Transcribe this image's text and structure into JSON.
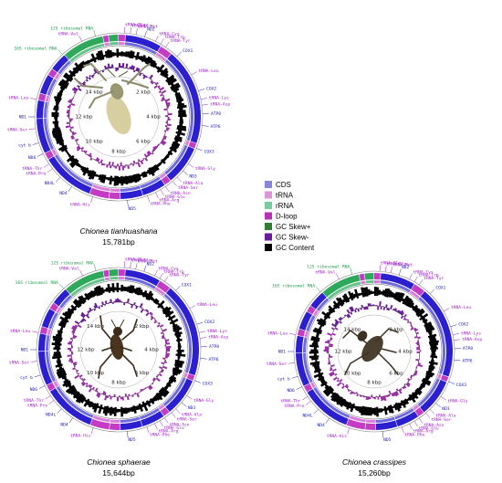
{
  "colors": {
    "cds": "#2b1fd0",
    "trna": "#c43cc4",
    "rrna": "#2ea85a",
    "dloop": "#7a2e96",
    "gc_skew_plus": "#2e7d32",
    "gc_skew_minus": "#6a1b9a",
    "gc_content": "#000000"
  },
  "legend": [
    {
      "label": "CDS",
      "color": "#8a86d8"
    },
    {
      "label": "tRNA",
      "color": "#d898d8"
    },
    {
      "label": "rRNA",
      "color": "#7ccaa0"
    },
    {
      "label": "D-loop",
      "color": "#b430b4"
    },
    {
      "label": "GC Skew+",
      "color": "#2e7d32"
    },
    {
      "label": "GC Skew-",
      "color": "#6a1b9a"
    },
    {
      "label": "GC Content",
      "color": "#000000"
    }
  ],
  "maps": [
    {
      "species": "Chionea tianhuashana",
      "length": "15,781bp",
      "mbp": [
        "14 kbp",
        "2 kbp",
        "4 kbp",
        "6 kbp",
        "8 kbp",
        "10 kbp",
        "12 kbp"
      ],
      "gene_labels": [
        "tRNA-Ile",
        "tRNA-Gln",
        "tRNA-Met",
        "ND2",
        "tRNA-Cys",
        "tRNA-Trp",
        "tRNA-Tyr",
        "COX1",
        "tRNA-Leu",
        "COX2",
        "tRNA-Lys",
        "tRNA-Asp",
        "ATP8",
        "ATP6",
        "COX3",
        "tRNA-Gly",
        "ND3",
        "tRNA-Ala",
        "tRNA-Ser",
        "tRNA-Asn",
        "tRNA-Glu",
        "tRNA-Arg",
        "tRNA-Phe",
        "ND5",
        "tRNA-His",
        "ND4",
        "ND4L",
        "tRNA-Pro",
        "tRNA-Thr",
        "ND6",
        "cyt b",
        "tRNA-Ser",
        "ND1",
        "tRNA-Leu",
        "16S ribosomal RNA",
        "tRNA-Val",
        "12S ribosomal RNA"
      ]
    },
    {
      "species": "Chionea sphaerae",
      "length": "15,644bp",
      "mbp": [
        "14 kbp",
        "2 kbp",
        "4 kbp",
        "6 kbp",
        "8 kbp",
        "10 kbp",
        "12 kbp"
      ],
      "gene_labels": [
        "tRNA-Ile",
        "tRNA-Gln",
        "tRNA-Met",
        "ND2",
        "tRNA-Cys",
        "tRNA-Trp",
        "tRNA-Tyr",
        "COX1",
        "tRNA-Leu",
        "COX2",
        "tRNA-Lys",
        "tRNA-Asp",
        "ATP8",
        "ATP6",
        "COX3",
        "tRNA-Gly",
        "ND3",
        "tRNA-Ala",
        "tRNA-Ser",
        "tRNA-Asn",
        "tRNA-Glu",
        "tRNA-Arg",
        "tRNA-Phe",
        "ND5",
        "tRNA-His",
        "ND4",
        "ND4L",
        "tRNA-Pro",
        "tRNA-Thr",
        "ND6",
        "cyt b",
        "tRNA-Ser",
        "ND1",
        "tRNA-Leu",
        "16S ribosomal RNA",
        "tRNA-Val",
        "12S ribosomal RNA"
      ]
    },
    {
      "species": "Chionea crassipes",
      "length": "15,260bp",
      "mbp": [
        "14 kbp",
        "2 kbp",
        "4 kbp",
        "6 kbp",
        "8 kbp",
        "10 kbp",
        "12 kbp"
      ],
      "gene_labels": [
        "tRNA-Ile",
        "tRNA-Gln",
        "tRNA-Met",
        "ND2",
        "tRNA-Cys",
        "tRNA-Trp",
        "tRNA-Tyr",
        "COX1",
        "tRNA-Leu",
        "COX2",
        "tRNA-Lys",
        "tRNA-Asp",
        "ATP8",
        "ATP6",
        "COX3",
        "tRNA-Gly",
        "ND3",
        "tRNA-Ala",
        "tRNA-Ser",
        "tRNA-Asn",
        "tRNA-Glu",
        "tRNA-Arg",
        "tRNA-Phe",
        "ND5",
        "tRNA-His",
        "ND4",
        "ND4L",
        "tRNA-Pro",
        "tRNA-Thr",
        "ND6",
        "cyt b",
        "tRNA-Ser",
        "ND1",
        "tRNA-Leu",
        "16S ribosomal RNA",
        "tRNA-Val",
        "12S ribosomal RNA"
      ]
    }
  ]
}
